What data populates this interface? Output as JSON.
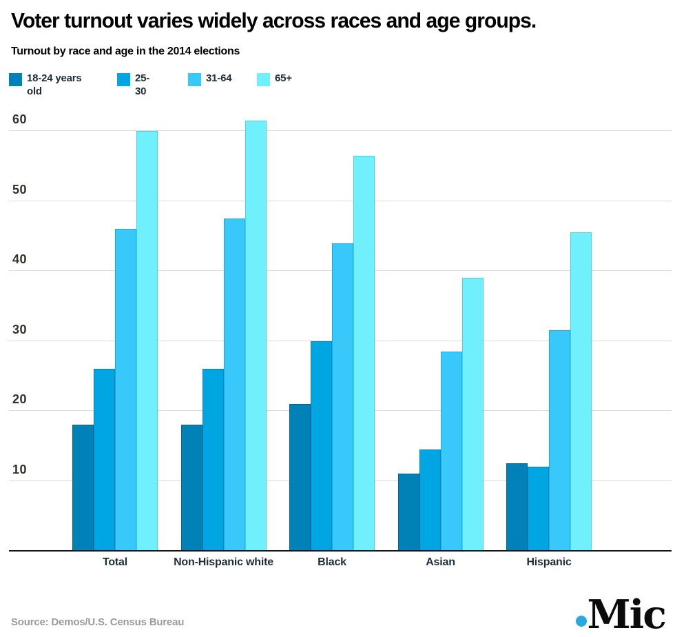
{
  "header": {
    "title": "Voter turnout varies widely across races and age groups.",
    "subtitle": "Turnout by race and age in the 2014 elections"
  },
  "footer": {
    "source": "Source: Demos/U.S. Census Bureau",
    "logo_text": "Mic"
  },
  "colors": {
    "background": "#ffffff",
    "gridline": "#d9d9d9",
    "axis": "#141414",
    "tick_label": "#34302b",
    "category_label": "#1e2d3b",
    "source_text": "#9b9b9b",
    "logo_dot_blue": "#2aa9e0"
  },
  "chart_data": {
    "type": "bar",
    "title": "Voter turnout varies widely across races and age groups.",
    "subtitle": "Turnout by race and age in the 2014 elections",
    "xlabel": "",
    "ylabel": "",
    "categories": [
      "Total",
      "Non-Hispanic white",
      "Black",
      "Asian",
      "Hispanic"
    ],
    "series": [
      {
        "name": "18-24 years old",
        "legend_label": "18-24 years\nold",
        "color": "#0082b9",
        "border": "#006693",
        "values": [
          18,
          18,
          21,
          11,
          12.5
        ]
      },
      {
        "name": "25-30",
        "legend_label": "25-\n30",
        "color": "#00a6e2",
        "border": "#0084bd",
        "values": [
          26,
          26,
          30,
          14.5,
          12
        ]
      },
      {
        "name": "31-64",
        "legend_label": "31-64",
        "color": "#38c9fa",
        "border": "#17abdf",
        "values": [
          46,
          47.5,
          44,
          28.5,
          31.5
        ]
      },
      {
        "name": "65+",
        "legend_label": "65+",
        "color": "#70f0fd",
        "border": "#44d4e6",
        "values": [
          60,
          61.5,
          56.5,
          39,
          45.5
        ]
      }
    ],
    "yticks": [
      60,
      50,
      40,
      30,
      20,
      10
    ],
    "ylim": [
      0,
      62.5
    ],
    "grid": "horizontal",
    "legend_position": "top",
    "units": "percent"
  }
}
